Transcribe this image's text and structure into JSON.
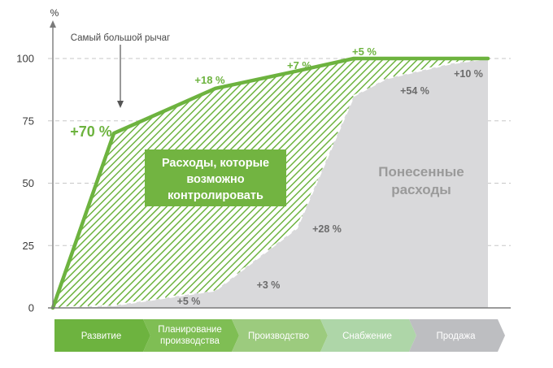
{
  "chart_data": {
    "type": "area",
    "ylabel": "%",
    "ylim": [
      0,
      100
    ],
    "y_ticks": [
      "0",
      "25",
      "50",
      "75",
      "100"
    ],
    "grid": true,
    "x": [
      0,
      0.75,
      2.0,
      3.0,
      3.7,
      4.1,
      4.9,
      5.35
    ],
    "series": [
      {
        "name": "Расходы, которые возможно контролировать",
        "values": [
          0,
          70,
          88,
          95,
          100,
          100,
          100,
          100
        ],
        "color": "#6db33f"
      },
      {
        "name": "Понесенные расходы",
        "values": [
          0,
          1,
          7,
          32,
          85,
          92,
          98,
          100
        ],
        "color": "#d9d9db"
      }
    ],
    "stages": [
      "Развитие",
      "Планирование производства",
      "Производство",
      "Снабжение",
      "Продажа"
    ],
    "stage_colors": [
      "#6db33f",
      "#7fbe54",
      "#9ccb7e",
      "#aed6a8",
      "#bdbec1"
    ],
    "controllable_annotations": [
      "+70 %",
      "+18 %",
      "+7 %",
      "+5 %"
    ],
    "incurred_annotations": [
      "+5 %",
      "+3 %",
      "+28 %",
      "+54 %",
      "+10 %"
    ],
    "lever_annotation": "Самый большой  рычаг",
    "controllable_box_label": "Расходы, которые возможно контролировать",
    "controllable_box_lines": [
      "Расходы, которые",
      "возможно",
      "контролировать"
    ],
    "incurred_label": "Понесенные расходы",
    "incurred_label_lines": [
      "Понесенные",
      "расходы"
    ],
    "colors": {
      "accent_green": "#6db33f",
      "box_green": "#72b441",
      "incurred_gray": "#d9d9db",
      "grid": "#c7c7c7",
      "axis": "#7a7a7a"
    }
  }
}
